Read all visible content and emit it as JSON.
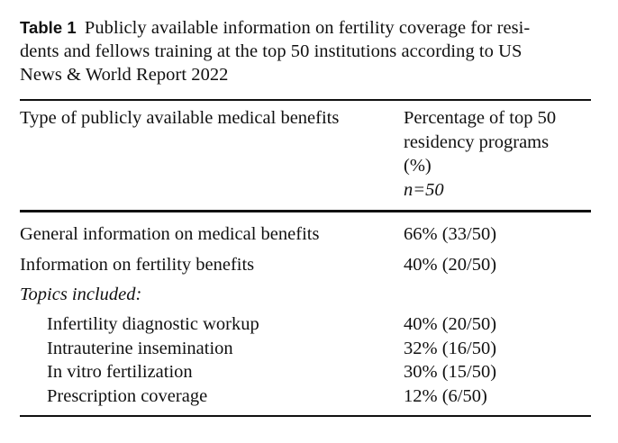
{
  "caption": {
    "label": "Table 1",
    "text": "Publicly available information on fertility coverage for residents and fellows training at the top 50 institutions according to US News & World Report 2022",
    "lines": [
      "Publicly available information on fertility coverage for resi-",
      "dents and fellows training at the top 50 institutions according to US",
      "News & World Report 2022"
    ]
  },
  "header": {
    "col1": "Type of publicly available medical benefits",
    "col2_lines": [
      "Percentage of top 50",
      "residency programs",
      "(%)"
    ],
    "col2_n": "n=50"
  },
  "rows": [
    {
      "label": "General information on medical benefits",
      "value": "66% (33/50)"
    },
    {
      "label": "Information on fertility benefits",
      "value": "40% (20/50)"
    }
  ],
  "subheading": "Topics included:",
  "subrows": [
    {
      "label": "Infertility diagnostic workup",
      "value": "40% (20/50)"
    },
    {
      "label": "Intrauterine insemination",
      "value": "32% (16/50)"
    },
    {
      "label": "In vitro fertilization",
      "value": "30% (15/50)"
    },
    {
      "label": "Prescription coverage",
      "value": "12% (6/50)"
    }
  ]
}
